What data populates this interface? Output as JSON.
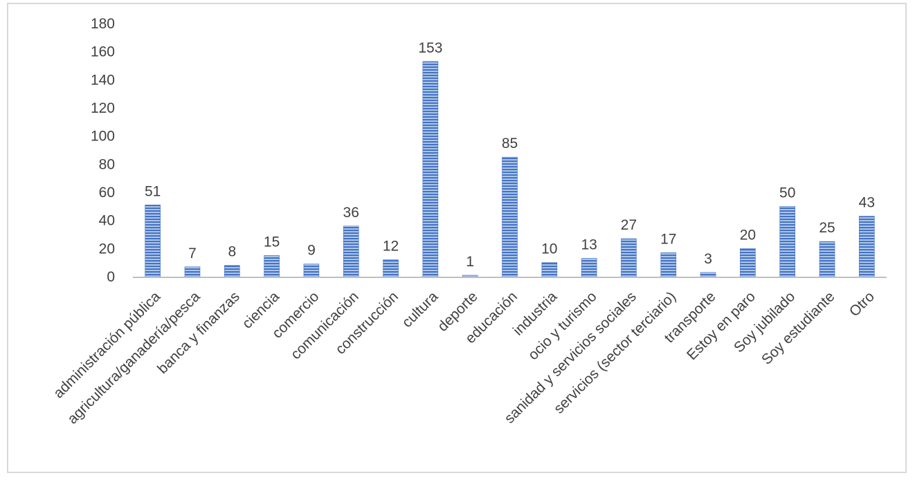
{
  "chart_data": {
    "type": "bar",
    "categories": [
      "administración pública",
      "agricultura/ganadería/pesca",
      "banca y finanzas",
      "ciencia",
      "comercio",
      "comunicación",
      "construcción",
      "cultura",
      "deporte",
      "educación",
      "industria",
      "ocio y turismo",
      "sanidad y servicios sociales",
      "servicios (sector terciario)",
      "transporte",
      "Estoy en paro",
      "Soy jubilado",
      "Soy estudiante",
      "Otro"
    ],
    "values": [
      51,
      7,
      8,
      15,
      9,
      36,
      12,
      153,
      1,
      85,
      10,
      13,
      27,
      17,
      3,
      20,
      50,
      25,
      43
    ],
    "data_labels": [
      "51",
      "7",
      "8",
      "15",
      "9",
      "36",
      "12",
      "153",
      "1",
      "85",
      "10",
      "13",
      "27",
      "17",
      "3",
      "20",
      "50",
      "25",
      "43"
    ],
    "title": "",
    "xlabel": "",
    "ylabel": "",
    "ylim": [
      0,
      180
    ],
    "yticks": [
      "0",
      "20",
      "40",
      "60",
      "80",
      "100",
      "120",
      "140",
      "160",
      "180"
    ],
    "grid": false,
    "legend": "none",
    "bar_fill": "#4472c4",
    "bar_stripe": "#9dc3e6",
    "axis_color": "#bfbfbf",
    "text_color": "#404040"
  }
}
